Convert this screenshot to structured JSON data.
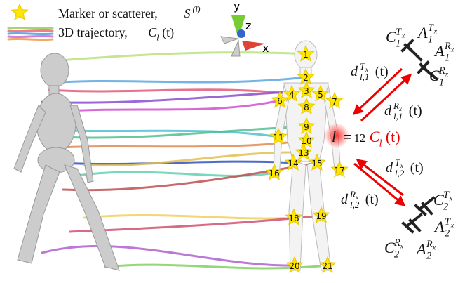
{
  "legend": [
    {
      "text": "Marker or scatterer, ",
      "sym": "S",
      "sup": "(l)"
    },
    {
      "text": "3D trajectory, ",
      "sym": "C",
      "sub": "l",
      "arg": "(t)"
    }
  ],
  "axes": {
    "y": "y",
    "z": "z",
    "x": "x"
  },
  "markers": [
    "1",
    "2",
    "3",
    "4",
    "5",
    "6",
    "7",
    "8",
    "9",
    "10",
    "11",
    "13",
    "14",
    "15",
    "16",
    "17",
    "18",
    "19",
    "20",
    "21"
  ],
  "marker_label": {
    "sym": "l",
    "eq": "=",
    "num": "12",
    "traj": "C",
    "sub": "l",
    "arg": "(t)"
  },
  "distances": [
    {
      "sym": "d",
      "sup": "T",
      "supsub": "x",
      "sub": "l,1",
      "arg": "(t)"
    },
    {
      "sym": "d",
      "sup": "R",
      "supsub": "x",
      "sub": "l,1",
      "arg": "(t)"
    },
    {
      "sym": "d",
      "sup": "T",
      "supsub": "x",
      "sub": "l,2",
      "arg": "(t)"
    },
    {
      "sym": "d",
      "sup": "R",
      "supsub": "x",
      "sub": "l,2",
      "arg": "(t)"
    }
  ],
  "antennas": [
    {
      "sym": "C",
      "sup": "T",
      "supsub": "x",
      "sub": "1"
    },
    {
      "sym": "A",
      "sup": "T",
      "supsub": "x",
      "sub": "1"
    },
    {
      "sym": "A",
      "sup": "R",
      "supsub": "x",
      "sub": "1"
    },
    {
      "sym": "C",
      "sup": "R",
      "supsub": "x",
      "sub": "1"
    },
    {
      "sym": "C",
      "sup": "T",
      "supsub": "x",
      "sub": "2"
    },
    {
      "sym": "A",
      "sup": "T",
      "supsub": "x",
      "sub": "2"
    },
    {
      "sym": "C",
      "sup": "R",
      "supsub": "x",
      "sub": "2"
    },
    {
      "sym": "A",
      "sup": "R",
      "supsub": "x",
      "sub": "2"
    }
  ]
}
